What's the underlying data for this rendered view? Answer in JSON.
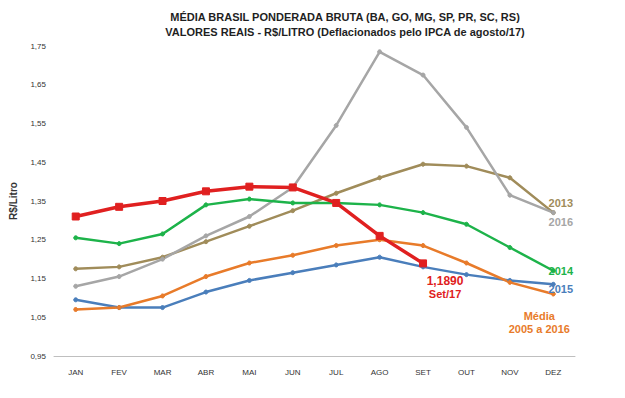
{
  "chart_data": {
    "type": "line",
    "title": "MÉDIA BRASIL PONDERADA BRUTA (BA, GO, MG, SP, PR, SC, RS)",
    "subtitle": "VALORES REAIS - R$/LITRO (Deflacionados pelo IPCA de agosto/17)",
    "y_label": "R$/Litro",
    "categories": [
      "JAN",
      "FEV",
      "MAR",
      "ABR",
      "MAI",
      "JUN",
      "JUL",
      "AGO",
      "SET",
      "OUT",
      "NOV",
      "DEZ"
    ],
    "ylim": [
      0.95,
      1.75
    ],
    "yticks": [
      {
        "value": 0.95,
        "label": "0,95"
      },
      {
        "value": 1.05,
        "label": "1,05"
      },
      {
        "value": 1.15,
        "label": "1,15"
      },
      {
        "value": 1.25,
        "label": "1,25"
      },
      {
        "value": 1.35,
        "label": "1,35"
      },
      {
        "value": 1.45,
        "label": "1,45"
      },
      {
        "value": 1.55,
        "label": "1,55"
      },
      {
        "value": 1.65,
        "label": "1,65"
      },
      {
        "value": 1.75,
        "label": "1,75"
      }
    ],
    "grid": false,
    "series": [
      {
        "name": "Set/17",
        "color": "#e02020",
        "marker": "square",
        "values": [
          1.31,
          1.335,
          1.35,
          1.375,
          1.387,
          1.385,
          1.345,
          1.26,
          1.189,
          null,
          null,
          null
        ]
      },
      {
        "name": "2013",
        "color": "#a08c5a",
        "marker": "circle",
        "values": [
          1.175,
          1.18,
          1.205,
          1.245,
          1.285,
          1.325,
          1.37,
          1.41,
          1.445,
          1.44,
          1.41,
          1.32
        ]
      },
      {
        "name": "2016",
        "color": "#a6a6a6",
        "marker": "circle",
        "values": [
          1.13,
          1.155,
          1.2,
          1.26,
          1.31,
          1.385,
          1.545,
          1.735,
          1.675,
          1.54,
          1.365,
          1.32
        ]
      },
      {
        "name": "2014",
        "color": "#1db34a",
        "marker": "circle",
        "values": [
          1.255,
          1.24,
          1.265,
          1.34,
          1.355,
          1.345,
          1.345,
          1.34,
          1.32,
          1.29,
          1.23,
          1.17
        ]
      },
      {
        "name": "2015",
        "color": "#4a7ebb",
        "marker": "circle",
        "values": [
          1.095,
          1.075,
          1.075,
          1.115,
          1.145,
          1.165,
          1.185,
          1.205,
          1.18,
          1.16,
          1.145,
          1.135
        ]
      },
      {
        "name": "Média\n2005 a 2016",
        "color": "#e87b2a",
        "marker": "circle",
        "values": [
          1.07,
          1.075,
          1.105,
          1.155,
          1.19,
          1.21,
          1.235,
          1.25,
          1.235,
          1.19,
          1.14,
          1.11
        ]
      }
    ],
    "annotations": [
      {
        "text": "1,1890",
        "x": "SET",
        "y": 1.189,
        "series": "Set/17"
      }
    ]
  }
}
